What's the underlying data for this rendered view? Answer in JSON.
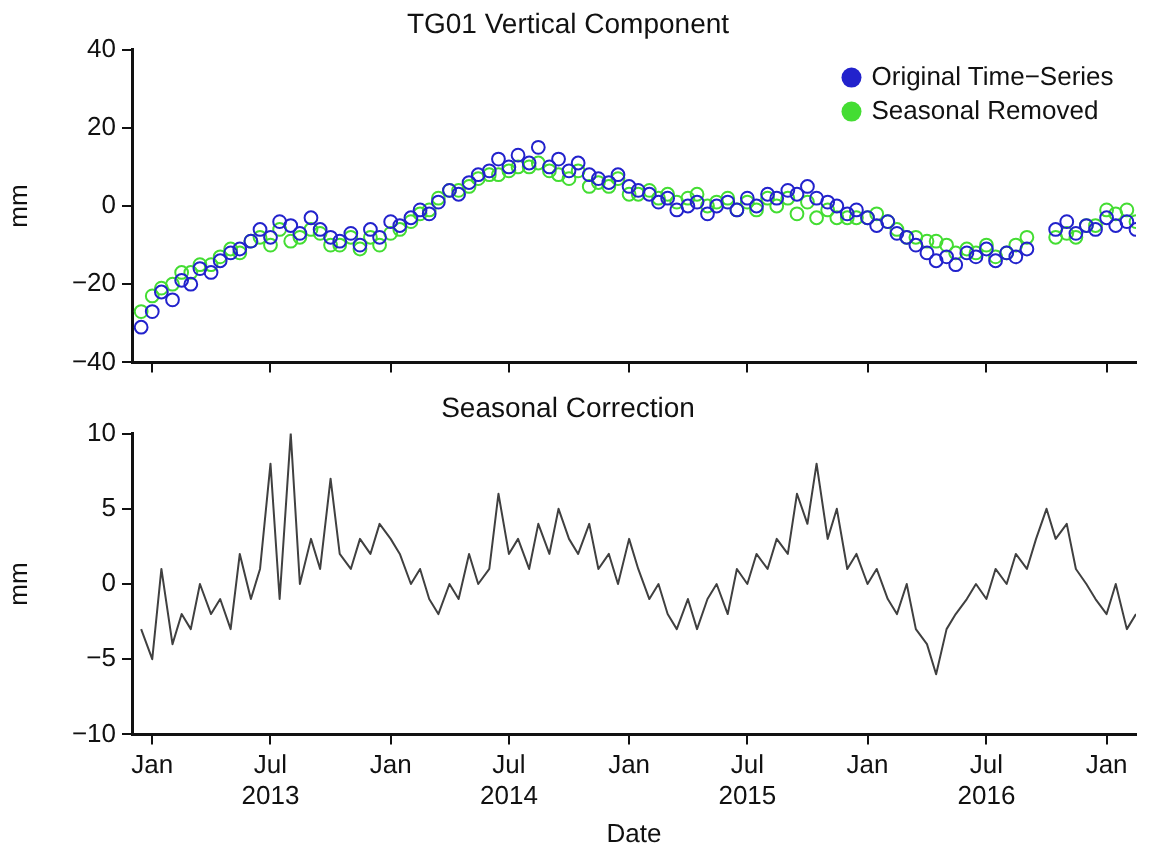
{
  "chart_data": [
    {
      "type": "scatter",
      "title": "TG01 Vertical Component",
      "ylabel": "mm",
      "x": [
        "2012-12-15",
        "2013-01-01",
        "2013-01-15",
        "2013-02-01",
        "2013-02-15",
        "2013-03-01",
        "2013-03-15",
        "2013-04-01",
        "2013-04-15",
        "2013-05-01",
        "2013-05-15",
        "2013-06-01",
        "2013-06-15",
        "2013-07-01",
        "2013-07-15",
        "2013-08-01",
        "2013-08-15",
        "2013-09-01",
        "2013-09-15",
        "2013-10-01",
        "2013-10-15",
        "2013-11-01",
        "2013-11-15",
        "2013-12-01",
        "2013-12-15",
        "2014-01-01",
        "2014-01-15",
        "2014-02-01",
        "2014-02-15",
        "2014-03-01",
        "2014-03-15",
        "2014-04-01",
        "2014-04-15",
        "2014-05-01",
        "2014-05-15",
        "2014-06-01",
        "2014-06-15",
        "2014-07-01",
        "2014-07-15",
        "2014-08-01",
        "2014-08-15",
        "2014-09-01",
        "2014-09-15",
        "2014-10-01",
        "2014-10-15",
        "2014-11-01",
        "2014-11-15",
        "2014-12-01",
        "2014-12-15",
        "2015-01-01",
        "2015-01-15",
        "2015-02-01",
        "2015-02-15",
        "2015-03-01",
        "2015-03-15",
        "2015-04-01",
        "2015-04-15",
        "2015-05-01",
        "2015-05-15",
        "2015-06-01",
        "2015-06-15",
        "2015-07-01",
        "2015-07-15",
        "2015-08-01",
        "2015-08-15",
        "2015-09-01",
        "2015-09-15",
        "2015-10-01",
        "2015-10-15",
        "2015-11-01",
        "2015-11-15",
        "2015-12-01",
        "2015-12-15",
        "2016-01-01",
        "2016-01-15",
        "2016-02-01",
        "2016-02-15",
        "2016-03-01",
        "2016-03-15",
        "2016-04-01",
        "2016-04-15",
        "2016-05-01",
        "2016-05-15",
        "2016-06-01",
        "2016-06-15",
        "2016-07-01",
        "2016-07-15",
        "2016-08-01",
        "2016-08-15",
        "2016-09-01",
        "2016-09-15",
        "2016-10-01",
        "2016-10-15",
        "2016-11-01",
        "2016-11-15",
        "2016-12-01",
        "2016-12-15",
        "2017-01-01",
        "2017-01-15",
        "2017-02-01",
        "2017-02-15"
      ],
      "series": [
        {
          "name": "Original Time−Series",
          "color": "#2222cc",
          "values": [
            -31,
            -27,
            -22,
            -24,
            -19,
            -20,
            -16,
            -17,
            -14,
            -12,
            -11,
            -9,
            -6,
            -8,
            -4,
            -5,
            -7,
            -3,
            -6,
            -8,
            -9,
            -7,
            -10,
            -6,
            -8,
            -4,
            -5,
            -3,
            -1,
            -2,
            1,
            4,
            3,
            6,
            8,
            9,
            12,
            10,
            13,
            11,
            15,
            10,
            12,
            9,
            11,
            8,
            7,
            6,
            8,
            5,
            4,
            3,
            1,
            2,
            -1,
            0,
            1,
            -2,
            0,
            1,
            -1,
            2,
            0,
            3,
            2,
            4,
            3,
            5,
            2,
            1,
            0,
            -2,
            -1,
            -3,
            -5,
            -4,
            -7,
            -8,
            -10,
            -12,
            -14,
            -13,
            -15,
            -12,
            -13,
            -11,
            -14,
            -12,
            -13,
            -11,
            null,
            null,
            -6,
            -4,
            -7,
            -5,
            -6,
            -3,
            -5,
            -4,
            -6
          ]
        },
        {
          "name": "Seasonal Removed",
          "color": "#44dd33",
          "values": [
            -27,
            -23,
            -21,
            -20,
            -17,
            -17,
            -15,
            -15,
            -13,
            -11,
            -12,
            -9,
            -8,
            -10,
            -6,
            -9,
            -8,
            -6,
            -7,
            -10,
            -10,
            -8,
            -11,
            -8,
            -10,
            -7,
            -6,
            -4,
            -2,
            -1,
            2,
            4,
            4,
            5,
            7,
            8,
            8,
            9,
            10,
            10,
            11,
            9,
            8,
            7,
            9,
            5,
            6,
            5,
            7,
            3,
            3,
            4,
            2,
            3,
            1,
            2,
            3,
            0,
            1,
            2,
            -1,
            1,
            -1,
            2,
            0,
            2,
            -2,
            1,
            -3,
            -1,
            -3,
            -3,
            -3,
            -3,
            -2,
            -4,
            -6,
            -8,
            -8,
            -9,
            -9,
            -10,
            -12,
            -11,
            -12,
            -10,
            -13,
            -12,
            -10,
            -8,
            null,
            null,
            -8,
            -7,
            -8,
            -5,
            -5,
            -1,
            -2,
            -1,
            -4
          ]
        }
      ],
      "xlim": [
        "2012-12-01",
        "2017-02-15"
      ],
      "xticks": [
        {
          "value": "2013-01-01",
          "label": null
        },
        {
          "value": "2013-07-01",
          "label": null
        },
        {
          "value": "2014-01-01",
          "label": null
        },
        {
          "value": "2014-07-01",
          "label": null
        },
        {
          "value": "2015-01-01",
          "label": null
        },
        {
          "value": "2015-07-01",
          "label": null
        },
        {
          "value": "2016-01-01",
          "label": null
        },
        {
          "value": "2016-07-01",
          "label": null
        },
        {
          "value": "2017-01-01",
          "label": null
        }
      ],
      "ylim": [
        -40,
        40
      ],
      "yticks": [
        -40,
        -20,
        0,
        20,
        40
      ],
      "tick_labels": "y",
      "marker": "circle",
      "legend": "top right",
      "grid": false
    },
    {
      "type": "line",
      "title": "Seasonal Correction",
      "ylabel": "mm",
      "xlabel": "Date",
      "x": [
        "2012-12-15",
        "2013-01-01",
        "2013-01-15",
        "2013-02-01",
        "2013-02-15",
        "2013-03-01",
        "2013-03-15",
        "2013-04-01",
        "2013-04-15",
        "2013-05-01",
        "2013-05-15",
        "2013-06-01",
        "2013-06-15",
        "2013-07-01",
        "2013-07-15",
        "2013-08-01",
        "2013-08-15",
        "2013-09-01",
        "2013-09-15",
        "2013-10-01",
        "2013-10-15",
        "2013-11-01",
        "2013-11-15",
        "2013-12-01",
        "2013-12-15",
        "2014-01-01",
        "2014-01-15",
        "2014-02-01",
        "2014-02-15",
        "2014-03-01",
        "2014-03-15",
        "2014-04-01",
        "2014-04-15",
        "2014-05-01",
        "2014-05-15",
        "2014-06-01",
        "2014-06-15",
        "2014-07-01",
        "2014-07-15",
        "2014-08-01",
        "2014-08-15",
        "2014-09-01",
        "2014-09-15",
        "2014-10-01",
        "2014-10-15",
        "2014-11-01",
        "2014-11-15",
        "2014-12-01",
        "2014-12-15",
        "2015-01-01",
        "2015-01-15",
        "2015-02-01",
        "2015-02-15",
        "2015-03-01",
        "2015-03-15",
        "2015-04-01",
        "2015-04-15",
        "2015-05-01",
        "2015-05-15",
        "2015-06-01",
        "2015-06-15",
        "2015-07-01",
        "2015-07-15",
        "2015-08-01",
        "2015-08-15",
        "2015-09-01",
        "2015-09-15",
        "2015-10-01",
        "2015-10-15",
        "2015-11-01",
        "2015-11-15",
        "2015-12-01",
        "2015-12-15",
        "2016-01-01",
        "2016-01-15",
        "2016-02-01",
        "2016-02-15",
        "2016-03-01",
        "2016-03-15",
        "2016-04-01",
        "2016-04-15",
        "2016-05-01",
        "2016-05-15",
        "2016-06-01",
        "2016-06-15",
        "2016-07-01",
        "2016-07-15",
        "2016-08-01",
        "2016-08-15",
        "2016-09-01",
        "2016-09-15",
        "2016-10-01",
        "2016-10-15",
        "2016-11-01",
        "2016-11-15",
        "2016-12-01",
        "2016-12-15",
        "2017-01-01",
        "2017-01-15",
        "2017-02-01",
        "2017-02-15"
      ],
      "series": [
        {
          "color": "#404040",
          "values": [
            -3,
            -5,
            1,
            -4,
            -2,
            -3,
            0,
            -2,
            -1,
            -3,
            2,
            -1,
            1,
            8,
            -1,
            10,
            0,
            3,
            1,
            7,
            2,
            1,
            3,
            2,
            4,
            3,
            2,
            0,
            1,
            -1,
            -2,
            0,
            -1,
            2,
            0,
            1,
            6,
            2,
            3,
            1,
            4,
            2,
            5,
            3,
            2,
            4,
            1,
            2,
            0,
            3,
            1,
            -1,
            0,
            -2,
            -3,
            -1,
            -3,
            -1,
            0,
            -2,
            1,
            0,
            2,
            1,
            3,
            2,
            6,
            4,
            8,
            3,
            5,
            1,
            2,
            0,
            1,
            -1,
            -2,
            0,
            -3,
            -4,
            -6,
            -3,
            -2,
            -1,
            0,
            -1,
            1,
            0,
            2,
            1,
            3,
            5,
            3,
            4,
            1,
            0,
            -1,
            -2,
            0,
            -3,
            -2
          ]
        }
      ],
      "xlim": [
        "2012-12-01",
        "2017-02-15"
      ],
      "xticks": [
        {
          "value": "2013-01-01",
          "label": "Jan"
        },
        {
          "value": "2013-07-01",
          "label": "Jul\n2013"
        },
        {
          "value": "2014-01-01",
          "label": "Jan"
        },
        {
          "value": "2014-07-01",
          "label": "Jul\n2014"
        },
        {
          "value": "2015-01-01",
          "label": "Jan"
        },
        {
          "value": "2015-07-01",
          "label": "Jul\n2015"
        },
        {
          "value": "2016-01-01",
          "label": "Jan"
        },
        {
          "value": "2016-07-01",
          "label": "Jul\n2016"
        },
        {
          "value": "2017-01-01",
          "label": "Jan"
        }
      ],
      "ylim": [
        -10,
        10
      ],
      "yticks": [
        -10,
        -5,
        0,
        5,
        10
      ],
      "grid": false
    }
  ]
}
